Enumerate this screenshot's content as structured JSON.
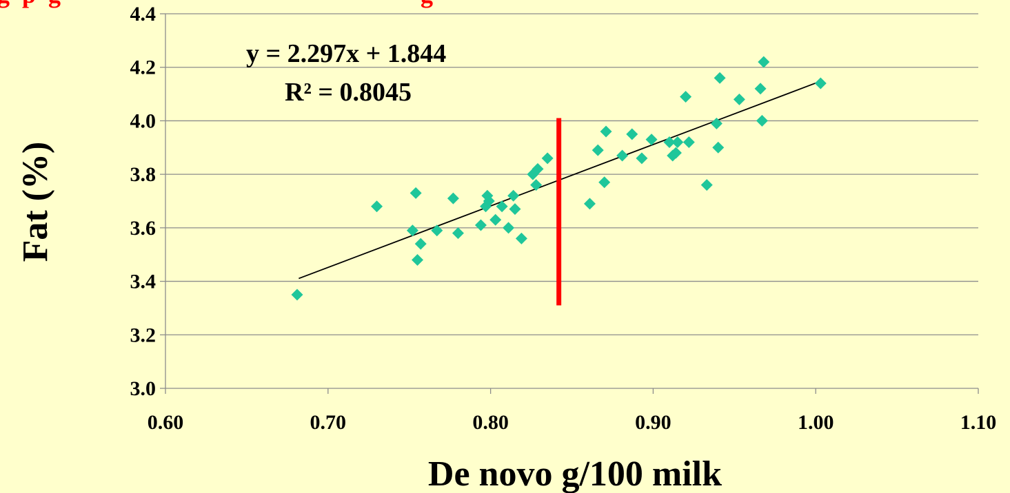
{
  "chart_data": {
    "type": "scatter",
    "title": "",
    "top_caption": "g  p  g                                                          g",
    "xlabel": "De novo g/100 milk",
    "ylabel": "Fat (%)",
    "xlim": [
      0.6,
      1.1
    ],
    "ylim": [
      3.0,
      4.4
    ],
    "x_ticks": [
      "0.60",
      "0.70",
      "0.80",
      "0.90",
      "1.00",
      "1.10"
    ],
    "y_ticks": [
      "3.0",
      "3.2",
      "3.4",
      "3.6",
      "3.8",
      "4.0",
      "4.2",
      "4.4"
    ],
    "grid": "horizontal",
    "marker": "diamond",
    "point_color": "#1FC69A",
    "trendline": {
      "slope": 2.297,
      "intercept": 1.844,
      "x_range": [
        0.682,
        1.003
      ],
      "color": "#000000",
      "equation": "y = 2.297x + 1.844",
      "r_squared": "R² = 0.8045"
    },
    "threshold": {
      "x": 0.842,
      "y_range": [
        3.31,
        4.01
      ],
      "color": "#FF0000"
    },
    "points": [
      [
        0.681,
        3.35
      ],
      [
        0.73,
        3.68
      ],
      [
        0.752,
        3.59
      ],
      [
        0.754,
        3.73
      ],
      [
        0.755,
        3.48
      ],
      [
        0.757,
        3.54
      ],
      [
        0.767,
        3.59
      ],
      [
        0.777,
        3.71
      ],
      [
        0.78,
        3.58
      ],
      [
        0.794,
        3.61
      ],
      [
        0.797,
        3.68
      ],
      [
        0.798,
        3.72
      ],
      [
        0.799,
        3.7
      ],
      [
        0.803,
        3.63
      ],
      [
        0.807,
        3.68
      ],
      [
        0.811,
        3.6
      ],
      [
        0.814,
        3.72
      ],
      [
        0.815,
        3.67
      ],
      [
        0.819,
        3.56
      ],
      [
        0.826,
        3.8
      ],
      [
        0.828,
        3.76
      ],
      [
        0.829,
        3.82
      ],
      [
        0.835,
        3.86
      ],
      [
        0.861,
        3.69
      ],
      [
        0.866,
        3.89
      ],
      [
        0.87,
        3.77
      ],
      [
        0.871,
        3.96
      ],
      [
        0.881,
        3.87
      ],
      [
        0.887,
        3.95
      ],
      [
        0.893,
        3.86
      ],
      [
        0.899,
        3.93
      ],
      [
        0.91,
        3.92
      ],
      [
        0.912,
        3.87
      ],
      [
        0.914,
        3.88
      ],
      [
        0.915,
        3.92
      ],
      [
        0.92,
        4.09
      ],
      [
        0.922,
        3.92
      ],
      [
        0.933,
        3.76
      ],
      [
        0.939,
        3.99
      ],
      [
        0.94,
        3.9
      ],
      [
        0.941,
        4.16
      ],
      [
        0.953,
        4.08
      ],
      [
        0.966,
        4.12
      ],
      [
        0.967,
        4.0
      ],
      [
        0.968,
        4.22
      ],
      [
        1.003,
        4.14
      ]
    ]
  }
}
